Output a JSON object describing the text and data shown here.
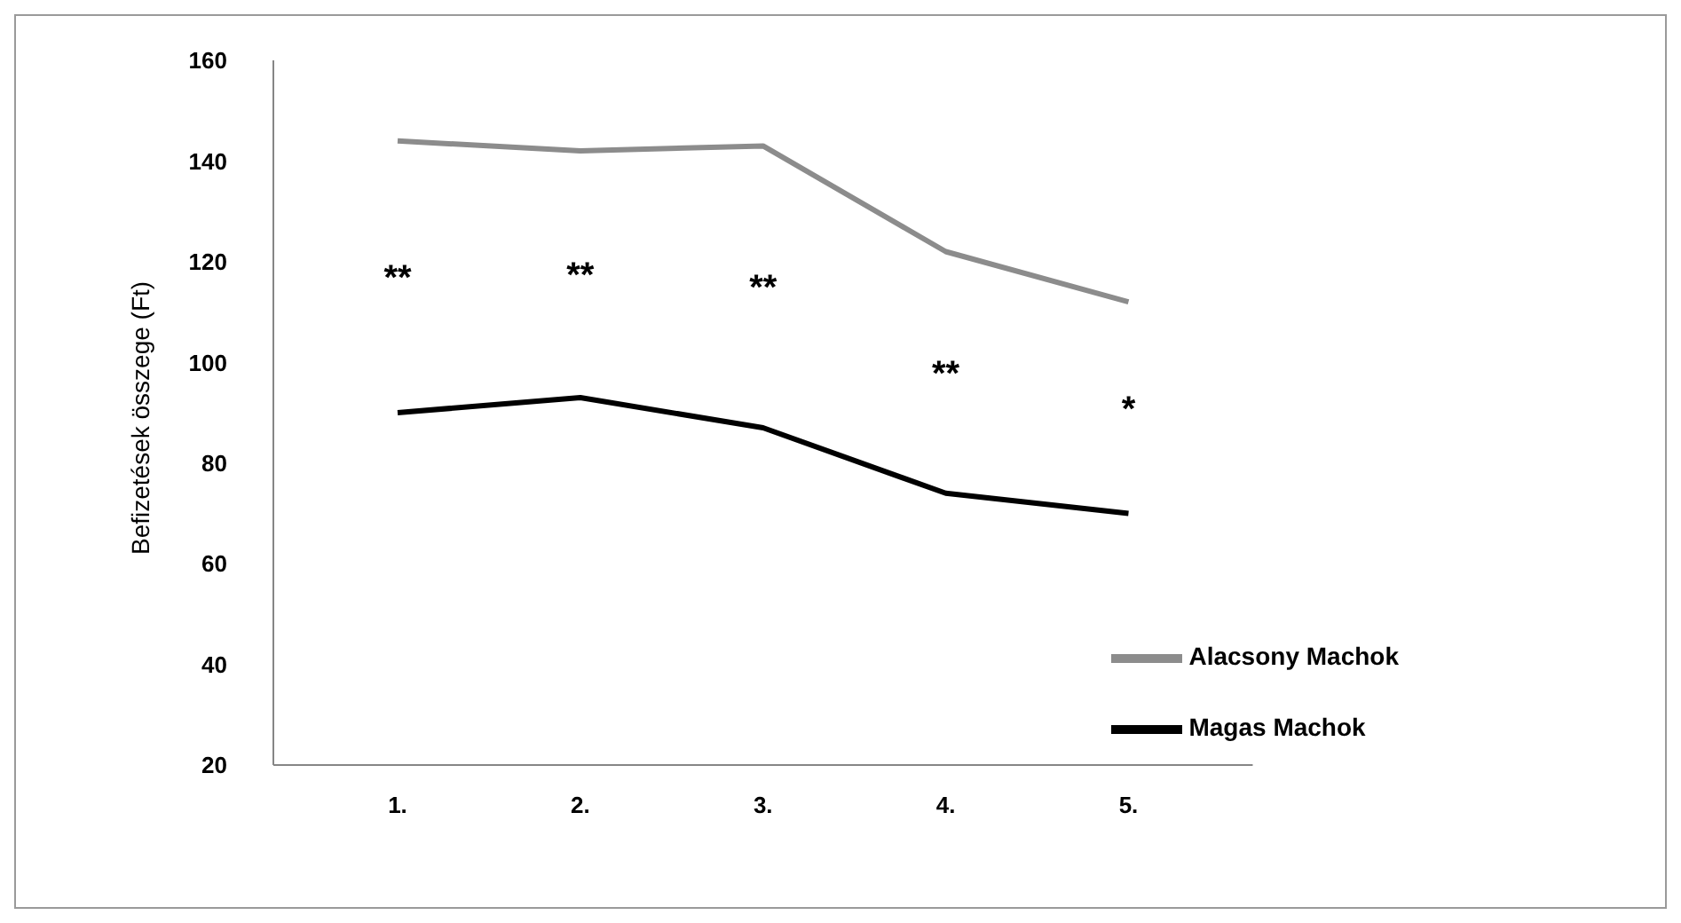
{
  "chart_data": {
    "type": "line",
    "ylabel": "Befizetések összege (Ft)",
    "categories": [
      "1.",
      "2.",
      "3.",
      "4.",
      "5."
    ],
    "series": [
      {
        "name": "Alacsony Machok",
        "color": "#8c8c8c",
        "values": [
          144,
          142,
          143,
          122,
          112
        ]
      },
      {
        "name": "Magas Machok",
        "color": "#000000",
        "values": [
          90,
          93,
          87,
          74,
          70
        ]
      }
    ],
    "ylim": [
      20,
      160
    ],
    "yticks": [
      20,
      40,
      60,
      80,
      100,
      120,
      140,
      160
    ],
    "grid": false,
    "legend": "bottom right",
    "marker": "none",
    "line_style": "solid",
    "annotations": [
      "**",
      "**",
      "**",
      "**",
      "*"
    ]
  }
}
